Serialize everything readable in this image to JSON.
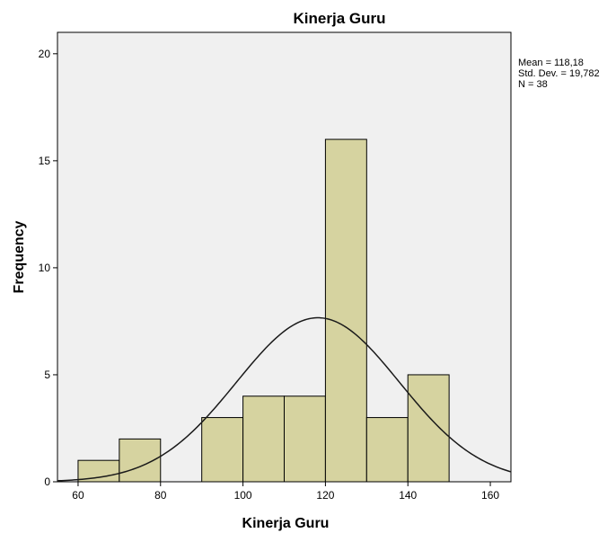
{
  "chart_data": {
    "type": "bar",
    "title": "Kinerja Guru",
    "xlabel": "Kinerja Guru",
    "ylabel": "Frequency",
    "xlim": [
      55,
      165
    ],
    "ylim": [
      0,
      21
    ],
    "x_ticks": [
      60,
      80,
      100,
      120,
      140,
      160
    ],
    "y_ticks": [
      0,
      5,
      10,
      15,
      20
    ],
    "bins": [
      {
        "from": 60,
        "to": 70,
        "count": 1
      },
      {
        "from": 70,
        "to": 80,
        "count": 2
      },
      {
        "from": 90,
        "to": 100,
        "count": 3
      },
      {
        "from": 100,
        "to": 110,
        "count": 4
      },
      {
        "from": 110,
        "to": 120,
        "count": 4
      },
      {
        "from": 120,
        "to": 130,
        "count": 16
      },
      {
        "from": 130,
        "to": 140,
        "count": 3
      },
      {
        "from": 140,
        "to": 150,
        "count": 5
      }
    ],
    "normal_curve": {
      "mean": 118.18,
      "std_dev": 19.782,
      "n": 38,
      "bin_width": 10
    },
    "stats_text": [
      "Mean = 118,18",
      "Std. Dev. = 19,782",
      "N = 38"
    ],
    "colors": {
      "bar_fill": "#d6d3a0",
      "bar_stroke": "#000000",
      "plot_bg": "#f0f0f0",
      "curve": "#1a1a1a"
    },
    "grid": false
  }
}
